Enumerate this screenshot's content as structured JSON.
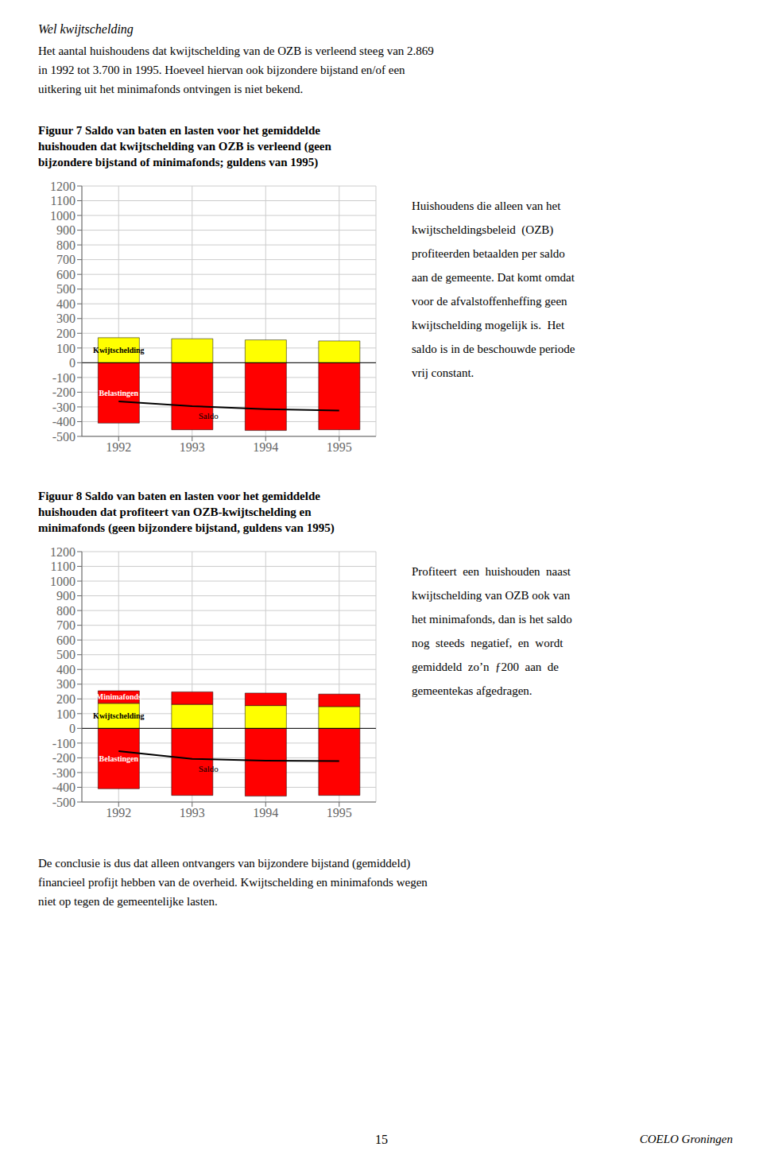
{
  "heading": "Wel kwijtschelding",
  "intro": [
    "Het aantal huishoudens dat kwijtschelding van de OZB is verleend steeg van 2.869",
    "in 1992 tot 3.700 in 1995. Hoeveel hiervan ook bijzondere bijstand en/of een",
    "uitkering uit het minimafonds ontvingen is niet bekend."
  ],
  "chart_data": [
    {
      "type": "bar",
      "stacked": true,
      "title": "Figuur 7  Saldo van baten en lasten voor het gemiddelde\nhuishouden dat kwijtschelding van OZB is verleend (geen\nbijzondere bijstand of minimafonds; guldens van 1995)",
      "categories": [
        "1992",
        "1993",
        "1994",
        "1995"
      ],
      "series": [
        {
          "name": "Belastingen",
          "color": "#FF0000",
          "values": [
            -410,
            -455,
            -460,
            -455
          ]
        },
        {
          "name": "Kwijtschelding",
          "color": "#FFFF00",
          "values": [
            170,
            163,
            155,
            148
          ]
        },
        {
          "name": "Saldo",
          "type": "line",
          "color": "#000000",
          "values": [
            -262,
            -295,
            -315,
            -325
          ]
        }
      ],
      "ylim": [
        -500,
        1200
      ],
      "yticks": [
        -500,
        -400,
        -300,
        -200,
        -100,
        0,
        100,
        200,
        300,
        400,
        500,
        600,
        700,
        800,
        900,
        1000,
        1100,
        1200
      ],
      "grid": true,
      "annotations": [
        "Huishoudens die alleen van het",
        "kwijtscheldingsbeleid  (OZB)",
        "profiteerden betaalden per saldo",
        "aan de gemeente. Dat komt omdat",
        "voor de afvalstoffenheffing geen",
        "kwijtschelding mogelijk is.  Het",
        "saldo is in de beschouwde periode",
        "vrij constant."
      ]
    },
    {
      "type": "bar",
      "stacked": true,
      "title": "Figuur 8  Saldo van baten en lasten voor het gemiddelde\nhuishouden dat profiteert van OZB-kwijtschelding en\nminimafonds (geen bijzondere bijstand, guldens van 1995)",
      "categories": [
        "1992",
        "1993",
        "1994",
        "1995"
      ],
      "series": [
        {
          "name": "Belastingen",
          "color": "#FF0000",
          "values": [
            -410,
            -455,
            -460,
            -455
          ]
        },
        {
          "name": "Kwijtschelding",
          "color": "#FFFF00",
          "values": [
            170,
            163,
            155,
            148
          ]
        },
        {
          "name": "Minimafonds",
          "color": "#FF0000",
          "values": [
            85,
            85,
            85,
            85
          ]
        },
        {
          "name": "Saldo",
          "type": "line",
          "color": "#000000",
          "values": [
            -155,
            -207,
            -220,
            -222
          ]
        }
      ],
      "ylim": [
        -500,
        1200
      ],
      "yticks": [
        -500,
        -400,
        -300,
        -200,
        -100,
        0,
        100,
        200,
        300,
        400,
        500,
        600,
        700,
        800,
        900,
        1000,
        1100,
        1200
      ],
      "grid": true,
      "annotations": [
        "Profiteert  een  huishouden  naast",
        "kwijtschelding van OZB ook van",
        "het minimafonds, dan is het saldo",
        "nog  steeds  negatief,  en  wordt",
        "gemiddeld  zo’n  ƒ200  aan  de",
        "gemeentekas afgedragen."
      ]
    }
  ],
  "conclusion": [
    "De conclusie is dus dat alleen ontvangers van bijzondere bijstand (gemiddeld)",
    "financieel profijt hebben van de overheid. Kwijtschelding en minimafonds wegen",
    "niet op tegen de gemeentelijke lasten."
  ],
  "footer": [
    "15",
    "COELO Groningen"
  ]
}
